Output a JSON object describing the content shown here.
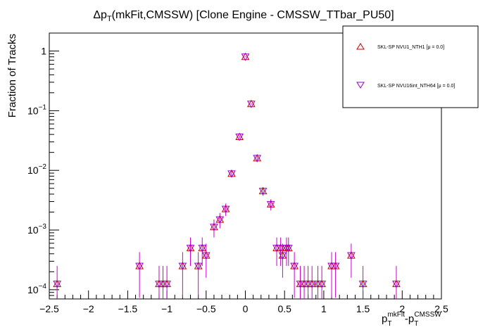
{
  "chart_data": {
    "type": "scatter",
    "title": {
      "prefix": "Δp",
      "sub": "T",
      "rest": "(mkFit,CMSSW) [Clone Engine - CMSSW_TTbar_PU50]"
    },
    "ylabel": "Fraction of Tracks",
    "xlabel": {
      "p": "p",
      "sub1": "T",
      "sup1": "mkFit",
      "dash": "-p",
      "sub2": "T",
      "sup2": "CMSSW"
    },
    "xlim": [
      -2.5,
      2.5
    ],
    "ylim": [
      7e-05,
      2
    ],
    "yscale": "log",
    "x_ticks": [
      -2.5,
      -2,
      -1.5,
      -1,
      -0.5,
      0,
      0.5,
      1,
      1.5,
      2,
      2.5
    ],
    "x_tick_labels": [
      "−2.5",
      "−2",
      "−1.5",
      "−1",
      "−0.5",
      "0",
      "0.5",
      "1",
      "1.5",
      "2",
      "2.5"
    ],
    "y_ticks": [
      {
        "v": 0.0001,
        "e": "−4"
      },
      {
        "v": 0.001,
        "e": "−3"
      },
      {
        "v": 0.01,
        "e": "−2"
      },
      {
        "v": 0.1,
        "e": "−1"
      },
      {
        "v": 1,
        "e": ""
      }
    ],
    "legend": {
      "placement": "top-right",
      "entries": [
        {
          "label": "SKL-SP NVU1_NTH1 [μ =  0.0]",
          "marker": "triangle-up",
          "color": "#cc0000"
        },
        {
          "label": "SKL-SP NVU16int_NTH64 [μ =  0.0]",
          "marker": "triangle-down",
          "color": "#9900cc"
        }
      ]
    },
    "points": [
      {
        "x": -2.4,
        "y": 0.000125
      },
      {
        "x": -1.35,
        "y": 0.00025
      },
      {
        "x": -1.1,
        "y": 0.000125
      },
      {
        "x": -1.05,
        "y": 0.000125
      },
      {
        "x": -1.0,
        "y": 0.000125
      },
      {
        "x": -0.8,
        "y": 0.00025
      },
      {
        "x": -0.7,
        "y": 0.0005
      },
      {
        "x": -0.6,
        "y": 0.00025
      },
      {
        "x": -0.55,
        "y": 0.0005
      },
      {
        "x": -0.5,
        "y": 0.000375
      },
      {
        "x": -0.4,
        "y": 0.001125
      },
      {
        "x": -0.325,
        "y": 0.0015
      },
      {
        "x": -0.25,
        "y": 0.00225
      },
      {
        "x": -0.175,
        "y": 0.0088
      },
      {
        "x": -0.075,
        "y": 0.0365
      },
      {
        "x": 0.0,
        "y": 0.8
      },
      {
        "x": 0.075,
        "y": 0.13
      },
      {
        "x": 0.15,
        "y": 0.016
      },
      {
        "x": 0.225,
        "y": 0.0045
      },
      {
        "x": 0.325,
        "y": 0.0027
      },
      {
        "x": 0.4,
        "y": 0.0005
      },
      {
        "x": 0.45,
        "y": 0.0005
      },
      {
        "x": 0.475,
        "y": 0.000375
      },
      {
        "x": 0.525,
        "y": 0.0005
      },
      {
        "x": 0.55,
        "y": 0.0005
      },
      {
        "x": 0.625,
        "y": 0.00025
      },
      {
        "x": 0.7,
        "y": 0.000125
      },
      {
        "x": 0.75,
        "y": 0.000125
      },
      {
        "x": 0.8,
        "y": 0.000125
      },
      {
        "x": 0.85,
        "y": 0.000125
      },
      {
        "x": 0.925,
        "y": 0.000125
      },
      {
        "x": 0.975,
        "y": 0.000125
      },
      {
        "x": 1.1,
        "y": 0.00025
      },
      {
        "x": 1.15,
        "y": 0.00025
      },
      {
        "x": 1.35,
        "y": 0.000375
      },
      {
        "x": 1.5,
        "y": 0.000125
      },
      {
        "x": 1.925,
        "y": 0.000125
      }
    ]
  }
}
